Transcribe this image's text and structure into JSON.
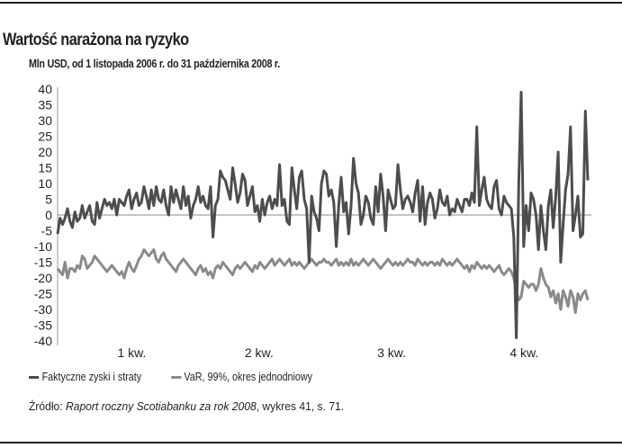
{
  "header": {
    "title": "Wartość narażona na ryzyko",
    "subtitle": "Mln USD, od 1 listopada 2006 r. do 31 października 2008 r."
  },
  "legend": {
    "items": [
      {
        "label": "Faktyczne zyski i straty",
        "color": "#4d4d4d"
      },
      {
        "label": "VaR, 99%, okres jednodniowy",
        "color": "#8a8a8a"
      }
    ]
  },
  "source": {
    "prefix": "Źródło: ",
    "title": "Raport roczny Scotiabanku za rok 2008",
    "suffix": ", wykres 41, s. 71."
  },
  "chart_data": {
    "type": "line",
    "title": "Wartość narażona na ryzyko",
    "subtitle": "Mln USD, od 1 listopada 2006 r. do 31 października 2008 r.",
    "xlabel": "",
    "ylabel": "Mln USD",
    "ylim": [
      -40,
      40
    ],
    "yticks": [
      40,
      35,
      30,
      25,
      20,
      15,
      10,
      5,
      0,
      -5,
      -10,
      -15,
      -20,
      -25,
      -30,
      -35,
      -40
    ],
    "xtick_labels": [
      "1 kw.",
      "2 kw.",
      "3 kw.",
      "4 kw."
    ],
    "xtick_positions": [
      0.14,
      0.38,
      0.63,
      0.88
    ],
    "grid": false,
    "zero_line": true,
    "legend_position": "bottom",
    "series": [
      {
        "name": "Faktyczne zyski i straty",
        "color": "#4d4d4d",
        "values": [
          -6,
          -1,
          -3,
          -1,
          2,
          -2,
          -4,
          1,
          -2,
          -1,
          3,
          -1,
          1,
          3,
          -2,
          -3,
          4,
          -1,
          2,
          5,
          3,
          4,
          2,
          5,
          0,
          5,
          4,
          3,
          6,
          8,
          2,
          5,
          7,
          3,
          4,
          9,
          6,
          2,
          8,
          3,
          9,
          5,
          4,
          8,
          3,
          0,
          9,
          4,
          8,
          5,
          2,
          9,
          3,
          6,
          -1,
          3,
          5,
          9,
          4,
          6,
          3,
          2,
          9,
          -7,
          3,
          5,
          14,
          12,
          11,
          8,
          5,
          15,
          10,
          4,
          7,
          13,
          11,
          3,
          6,
          9,
          1,
          3,
          -2,
          5,
          0,
          4,
          6,
          2,
          5,
          3,
          16,
          3,
          5,
          -2,
          -3,
          15,
          8,
          2,
          12,
          14,
          5,
          2,
          -15,
          6,
          1,
          -1,
          -5,
          10,
          14,
          13,
          6,
          8,
          4,
          -10,
          3,
          12,
          1,
          4,
          -6,
          3,
          18,
          10,
          7,
          -3,
          0,
          6,
          4,
          -1,
          -3,
          9,
          1,
          13,
          6,
          -5,
          8,
          5,
          2,
          3,
          16,
          8,
          2,
          5,
          6,
          4,
          1,
          7,
          11,
          -2,
          9,
          -3,
          4,
          7,
          5,
          -1,
          2,
          8,
          4,
          3,
          6,
          0,
          2,
          1,
          5,
          3,
          1,
          5,
          5,
          3,
          7,
          4,
          28,
          3,
          8,
          12,
          5,
          3,
          2,
          9,
          11,
          2,
          0,
          6,
          4,
          3,
          2,
          -7,
          -39,
          10,
          39,
          -10,
          3,
          -5,
          7,
          5,
          0,
          -11,
          3,
          -5,
          -11,
          3,
          8,
          -4,
          6,
          20,
          -15,
          -3,
          8,
          13,
          28,
          -5,
          0,
          6,
          -7,
          -6,
          33,
          11
        ]
      },
      {
        "name": "VaR, 99%, okres jednodniowy",
        "color": "#8a8a8a",
        "values": [
          -17,
          -18,
          -19,
          -15,
          -20,
          -17,
          -17,
          -18,
          -16,
          -17,
          -13,
          -14,
          -17,
          -16,
          -15,
          -13,
          -14,
          -15,
          -16,
          -17,
          -18,
          -17,
          -16,
          -17,
          -18,
          -19,
          -18,
          -20,
          -17,
          -15,
          -17,
          -18,
          -16,
          -14,
          -13,
          -11,
          -12,
          -13,
          -12,
          -11,
          -14,
          -15,
          -13,
          -12,
          -14,
          -15,
          -16,
          -17,
          -18,
          -16,
          -15,
          -14,
          -15,
          -16,
          -17,
          -18,
          -19,
          -17,
          -16,
          -18,
          -17,
          -19,
          -18,
          -20,
          -17,
          -16,
          -17,
          -15,
          -16,
          -17,
          -18,
          -19,
          -17,
          -16,
          -17,
          -16,
          -15,
          -16,
          -17,
          -18,
          -16,
          -17,
          -15,
          -16,
          -17,
          -16,
          -15,
          -14,
          -16,
          -15,
          -14,
          -15,
          -16,
          -15,
          -14,
          -16,
          -15,
          -16,
          -15,
          -16,
          -17,
          -16,
          -15,
          -14,
          -15,
          -16,
          -15,
          -15,
          -14,
          -15,
          -15,
          -16,
          -15,
          -14,
          -16,
          -15,
          -16,
          -15,
          -16,
          -14,
          -16,
          -15,
          -16,
          -15,
          -14,
          -15,
          -16,
          -15,
          -14,
          -15,
          -16,
          -17,
          -16,
          -15,
          -14,
          -15,
          -16,
          -15,
          -16,
          -15,
          -16,
          -15,
          -14,
          -15,
          -15,
          -16,
          -14,
          -15,
          -16,
          -15,
          -16,
          -15,
          -15,
          -16,
          -15,
          -16,
          -14,
          -15,
          -16,
          -15,
          -16,
          -15,
          -14,
          -15,
          -16,
          -17,
          -16,
          -18,
          -16,
          -17,
          -15,
          -16,
          -17,
          -16,
          -17,
          -16,
          -17,
          -18,
          -17,
          -16,
          -18,
          -19,
          -18,
          -17,
          -18,
          -20,
          -24,
          -27,
          -26,
          -21,
          -22,
          -23,
          -22,
          -22,
          -24,
          -22,
          -17,
          -20,
          -22,
          -23,
          -26,
          -24,
          -28,
          -25,
          -30,
          -24,
          -26,
          -29,
          -24,
          -26,
          -31,
          -25,
          -27,
          -25,
          -24,
          -27
        ]
      }
    ]
  }
}
